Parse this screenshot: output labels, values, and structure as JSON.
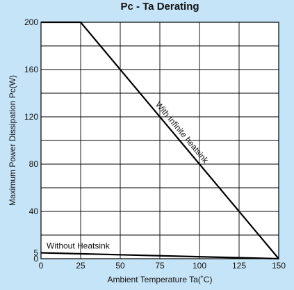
{
  "chart_data": {
    "type": "line",
    "title": "Pc - Ta Derating",
    "xlabel": "Ambient Temperature Ta(˚C)",
    "ylabel": "Maximum Power Dissipation Pc(W)",
    "xlim": [
      0,
      150
    ],
    "ylim": [
      0,
      200
    ],
    "x_ticks": [
      0,
      25,
      50,
      75,
      100,
      125,
      150
    ],
    "x_tick_labels": [
      "0",
      "25",
      "50",
      "75",
      "100",
      "125",
      "150"
    ],
    "y_ticks": [
      0,
      5,
      40,
      80,
      120,
      160,
      200
    ],
    "y_tick_labels": [
      "0",
      "5",
      "40",
      "80",
      "120",
      "160",
      "200"
    ],
    "grid": true,
    "series": [
      {
        "name": "With Infinite heatsink",
        "points": [
          [
            0,
            200
          ],
          [
            25,
            200
          ],
          [
            150,
            0
          ]
        ]
      },
      {
        "name": "Without Heatsink",
        "points": [
          [
            0,
            5
          ],
          [
            150,
            0
          ]
        ]
      }
    ],
    "colors": {
      "background": "#c6e4f7",
      "plot": "#ffffff",
      "line": "#000000"
    }
  }
}
